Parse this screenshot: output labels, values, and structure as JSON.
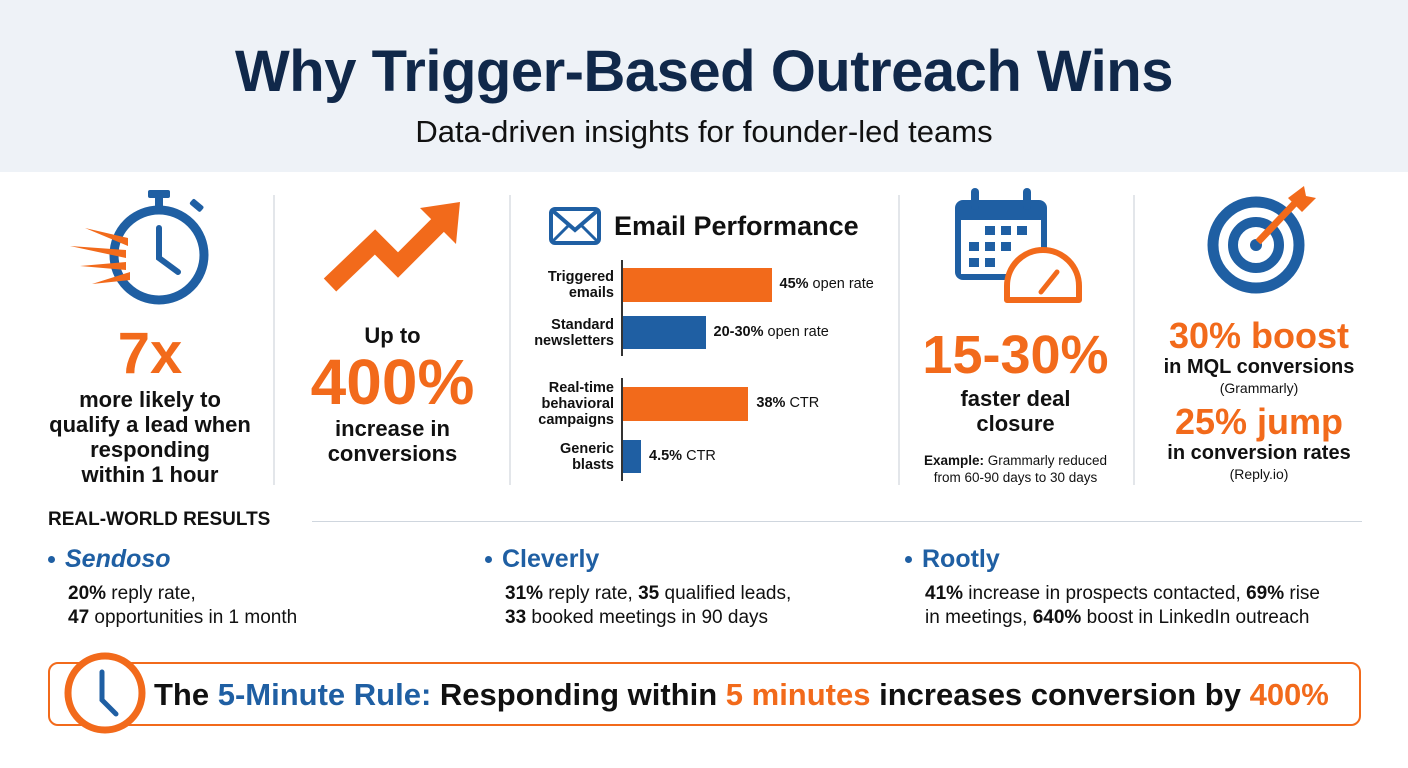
{
  "header": {
    "title": "Why Trigger-Based Outreach Wins",
    "subtitle": "Data-driven insights for founder-led teams"
  },
  "stats": {
    "speed": {
      "icon": "stopwatch-icon",
      "value": "7x",
      "lines": [
        "more likely to",
        "qualify a lead when",
        "responding",
        "within 1 hour"
      ]
    },
    "growth": {
      "icon": "trending-up-arrow-icon",
      "prefix": "Up to",
      "value": "400%",
      "lines": [
        "increase in",
        "conversions"
      ]
    },
    "closure": {
      "icon": "calendar-speedometer-icon",
      "value": "15-30%",
      "lines": [
        "faster deal",
        "closure"
      ],
      "example_label": "Example:",
      "example_text": " Grammarly reduced",
      "example_text2": "from 60-90 days to 30 days"
    },
    "target": {
      "icon": "target-arrow-icon",
      "value1": "30% boost",
      "text1": "in MQL conversions",
      "source1": "(Grammarly)",
      "value2": "25% jump",
      "text2": "in conversion rates",
      "source2": "(Reply.io)"
    }
  },
  "chart_data": {
    "type": "bar",
    "title": "Email Performance",
    "icon": "envelope-icon",
    "groups": [
      {
        "bars": [
          {
            "category": [
              "Triggered",
              "emails"
            ],
            "value": 45,
            "label_bold": "45%",
            "label_rest": " open rate",
            "color": "#f26a1b"
          },
          {
            "category": [
              "Standard",
              "newsletters"
            ],
            "value": 25,
            "label_bold": "20-30%",
            "label_rest": " open rate",
            "color": "#1f5fa3"
          }
        ]
      },
      {
        "bars": [
          {
            "category": [
              "Real-time",
              "behavioral",
              "campaigns"
            ],
            "value": 38,
            "label_bold": "38%",
            "label_rest": " CTR",
            "color": "#f26a1b"
          },
          {
            "category": [
              "Generic",
              "blasts"
            ],
            "value": 4.5,
            "label_bold": "4.5%",
            "label_rest": " CTR",
            "color": "#1f5fa3"
          }
        ]
      }
    ]
  },
  "results": {
    "heading": "REAL-WORLD RESULTS",
    "companies": [
      {
        "name": "Sendoso",
        "parts": [
          [
            "b",
            "20%"
          ],
          [
            "t",
            " reply rate,"
          ],
          [
            "br",
            ""
          ],
          [
            "b",
            "47"
          ],
          [
            "t",
            " opportunities in 1 month"
          ]
        ]
      },
      {
        "name": "Cleverly",
        "parts": [
          [
            "b",
            "31%"
          ],
          [
            "t",
            " reply rate, "
          ],
          [
            "b",
            "35"
          ],
          [
            "t",
            " qualified leads,"
          ],
          [
            "br",
            ""
          ],
          [
            "b",
            "33"
          ],
          [
            "t",
            " booked meetings in 90 days"
          ]
        ]
      },
      {
        "name": "Rootly",
        "parts": [
          [
            "b",
            "41%"
          ],
          [
            "t",
            " increase in prospects contacted, "
          ],
          [
            "b",
            "69%"
          ],
          [
            "t",
            " rise"
          ],
          [
            "br",
            ""
          ],
          [
            "t",
            "in meetings, "
          ],
          [
            "b",
            "640%"
          ],
          [
            "t",
            " boost in LinkedIn outreach"
          ]
        ]
      }
    ]
  },
  "rule": {
    "icon": "clock-icon",
    "the": "The ",
    "name": "5-Minute Rule:",
    "mid": " Responding within ",
    "highlight": "5 minutes",
    "mid2": " increases conversion by ",
    "value": "400%"
  },
  "colors": {
    "orange": "#f26a1b",
    "blue": "#1f5fa3",
    "navy": "#10284a"
  }
}
